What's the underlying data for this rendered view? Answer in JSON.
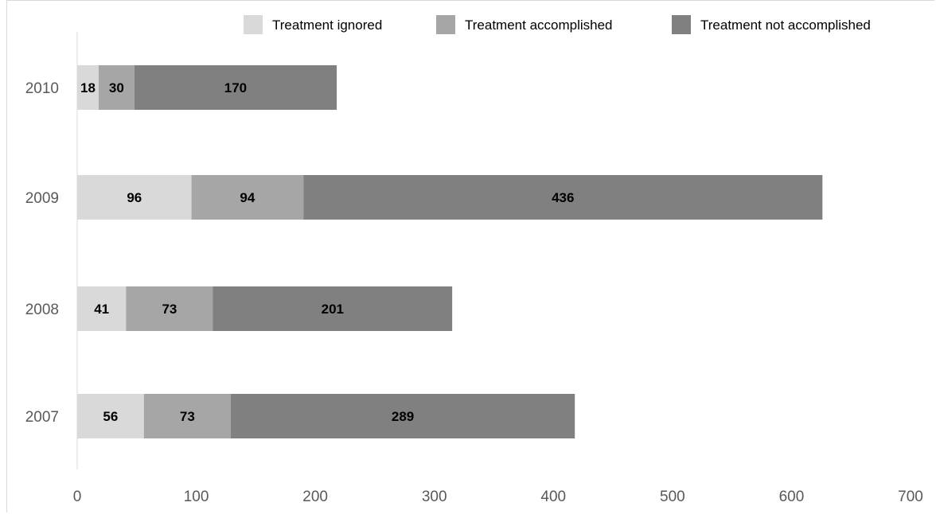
{
  "chart_data": {
    "type": "bar",
    "orientation": "horizontal",
    "stacked": true,
    "categories": [
      "2010",
      "2009",
      "2008",
      "2007"
    ],
    "series": [
      {
        "name": "Treatment ignored",
        "values": [
          18,
          96,
          41,
          56
        ],
        "color": "#d9d9d9"
      },
      {
        "name": "Treatment accomplished",
        "values": [
          30,
          94,
          73,
          73
        ],
        "color": "#a6a6a6"
      },
      {
        "name": "Treatment not accomplished",
        "values": [
          170,
          436,
          201,
          289
        ],
        "color": "#808080"
      }
    ],
    "xlim": [
      0,
      700
    ],
    "xticks": [
      "0",
      "100",
      "200",
      "300",
      "400",
      "500",
      "600",
      "700"
    ],
    "legend_position": "top",
    "grid": false,
    "data_labels": true
  }
}
